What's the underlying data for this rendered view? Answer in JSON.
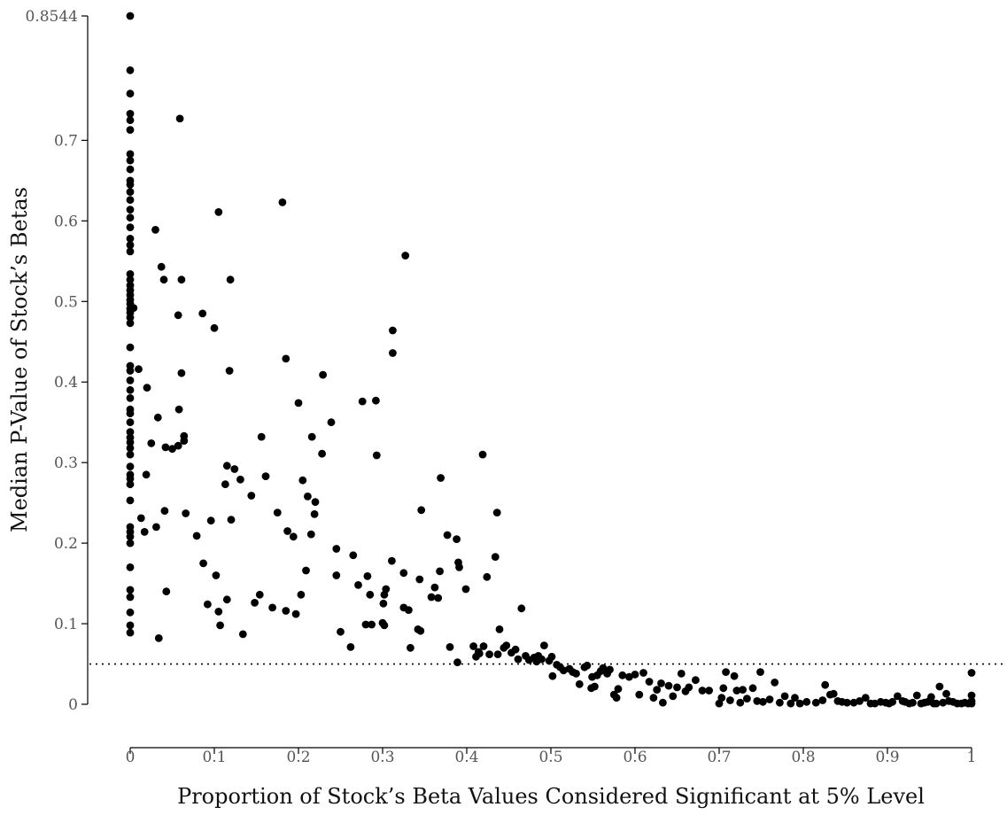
{
  "chart_data": {
    "type": "scatter",
    "title": "",
    "xlabel": "Proportion of Stock’s Beta Values Considered Significant at 5% Level",
    "ylabel": "Median P-Value of Stock’s Betas",
    "xlim": [
      0,
      1
    ],
    "ylim": [
      0,
      0.8544
    ],
    "x_ticks": [
      "0",
      "0.1",
      "0.2",
      "0.3",
      "0.4",
      "0.5",
      "0.6",
      "0.7",
      "0.8",
      "0.9",
      "1"
    ],
    "x_tick_values": [
      0,
      0.1,
      0.2,
      0.3,
      0.4,
      0.5,
      0.6,
      0.7,
      0.8,
      0.9,
      1
    ],
    "y_ticks": [
      "0",
      "0.1",
      "0.2",
      "0.3",
      "0.4",
      "0.5",
      "0.6",
      "0.7",
      "0.8544"
    ],
    "y_tick_values": [
      0,
      0.1,
      0.2,
      0.3,
      0.4,
      0.5,
      0.6,
      0.7,
      0.8544
    ],
    "reference_line": {
      "y": 0.05,
      "style": "dotted"
    },
    "grid": false,
    "legend": "none",
    "point_color": "#000000",
    "points": [
      [
        0,
        0.8544
      ],
      [
        0,
        0.787
      ],
      [
        0,
        0.758
      ],
      [
        0,
        0.733
      ],
      [
        0,
        0.725
      ],
      [
        0,
        0.713
      ],
      [
        0,
        0.683
      ],
      [
        0,
        0.675
      ],
      [
        0,
        0.664
      ],
      [
        0,
        0.65
      ],
      [
        0,
        0.645
      ],
      [
        0,
        0.636
      ],
      [
        0,
        0.626
      ],
      [
        0,
        0.614
      ],
      [
        0,
        0.604
      ],
      [
        0,
        0.592
      ],
      [
        0,
        0.578
      ],
      [
        0,
        0.57
      ],
      [
        0,
        0.562
      ],
      [
        0,
        0.534
      ],
      [
        0,
        0.527
      ],
      [
        0,
        0.52
      ],
      [
        0,
        0.514
      ],
      [
        0,
        0.508
      ],
      [
        0,
        0.502
      ],
      [
        0,
        0.497
      ],
      [
        0,
        0.491
      ],
      [
        0,
        0.486
      ],
      [
        0,
        0.48
      ],
      [
        0,
        0.473
      ],
      [
        0,
        0.443
      ],
      [
        0,
        0.42
      ],
      [
        0,
        0.414
      ],
      [
        0,
        0.402
      ],
      [
        0,
        0.39
      ],
      [
        0,
        0.38
      ],
      [
        0,
        0.366
      ],
      [
        0,
        0.361
      ],
      [
        0,
        0.35
      ],
      [
        0,
        0.338
      ],
      [
        0,
        0.331
      ],
      [
        0,
        0.325
      ],
      [
        0,
        0.318
      ],
      [
        0,
        0.31
      ],
      [
        0,
        0.295
      ],
      [
        0,
        0.285
      ],
      [
        0,
        0.28
      ],
      [
        0,
        0.273
      ],
      [
        0,
        0.253
      ],
      [
        0,
        0.22
      ],
      [
        0,
        0.214
      ],
      [
        0,
        0.208
      ],
      [
        0,
        0.2
      ],
      [
        0,
        0.17
      ],
      [
        0,
        0.142
      ],
      [
        0,
        0.133
      ],
      [
        0,
        0.114
      ],
      [
        0,
        0.098
      ],
      [
        0,
        0.089
      ],
      [
        0.004,
        0.492
      ],
      [
        0.01,
        0.416
      ],
      [
        0.013,
        0.231
      ],
      [
        0.017,
        0.214
      ],
      [
        0.019,
        0.285
      ],
      [
        0.02,
        0.393
      ],
      [
        0.025,
        0.324
      ],
      [
        0.03,
        0.589
      ],
      [
        0.031,
        0.22
      ],
      [
        0.033,
        0.356
      ],
      [
        0.034,
        0.082
      ],
      [
        0.037,
        0.543
      ],
      [
        0.04,
        0.527
      ],
      [
        0.041,
        0.24
      ],
      [
        0.042,
        0.319
      ],
      [
        0.043,
        0.14
      ],
      [
        0.05,
        0.317
      ],
      [
        0.057,
        0.321
      ],
      [
        0.057,
        0.483
      ],
      [
        0.058,
        0.366
      ],
      [
        0.059,
        0.727
      ],
      [
        0.061,
        0.411
      ],
      [
        0.061,
        0.527
      ],
      [
        0.064,
        0.333
      ],
      [
        0.064,
        0.327
      ],
      [
        0.066,
        0.237
      ],
      [
        0.079,
        0.209
      ],
      [
        0.086,
        0.485
      ],
      [
        0.087,
        0.175
      ],
      [
        0.092,
        0.124
      ],
      [
        0.096,
        0.228
      ],
      [
        0.1,
        0.467
      ],
      [
        0.102,
        0.16
      ],
      [
        0.105,
        0.611
      ],
      [
        0.105,
        0.115
      ],
      [
        0.107,
        0.098
      ],
      [
        0.113,
        0.273
      ],
      [
        0.115,
        0.296
      ],
      [
        0.115,
        0.13
      ],
      [
        0.118,
        0.414
      ],
      [
        0.119,
        0.527
      ],
      [
        0.12,
        0.229
      ],
      [
        0.124,
        0.292
      ],
      [
        0.131,
        0.279
      ],
      [
        0.134,
        0.087
      ],
      [
        0.144,
        0.259
      ],
      [
        0.148,
        0.126
      ],
      [
        0.154,
        0.136
      ],
      [
        0.156,
        0.332
      ],
      [
        0.161,
        0.283
      ],
      [
        0.169,
        0.12
      ],
      [
        0.175,
        0.238
      ],
      [
        0.181,
        0.623
      ],
      [
        0.185,
        0.429
      ],
      [
        0.185,
        0.116
      ],
      [
        0.187,
        0.215
      ],
      [
        0.194,
        0.208
      ],
      [
        0.197,
        0.112
      ],
      [
        0.2,
        0.374
      ],
      [
        0.203,
        0.136
      ],
      [
        0.205,
        0.278
      ],
      [
        0.209,
        0.166
      ],
      [
        0.211,
        0.258
      ],
      [
        0.215,
        0.211
      ],
      [
        0.216,
        0.332
      ],
      [
        0.219,
        0.236
      ],
      [
        0.22,
        0.251
      ],
      [
        0.228,
        0.311
      ],
      [
        0.229,
        0.409
      ],
      [
        0.239,
        0.35
      ],
      [
        0.245,
        0.193
      ],
      [
        0.245,
        0.16
      ],
      [
        0.25,
        0.09
      ],
      [
        0.262,
        0.071
      ],
      [
        0.265,
        0.185
      ],
      [
        0.271,
        0.148
      ],
      [
        0.276,
        0.376
      ],
      [
        0.28,
        0.099
      ],
      [
        0.282,
        0.159
      ],
      [
        0.285,
        0.136
      ],
      [
        0.287,
        0.099
      ],
      [
        0.292,
        0.377
      ],
      [
        0.293,
        0.309
      ],
      [
        0.3,
        0.101
      ],
      [
        0.301,
        0.125
      ],
      [
        0.302,
        0.098
      ],
      [
        0.302,
        0.136
      ],
      [
        0.304,
        0.143
      ],
      [
        0.311,
        0.178
      ],
      [
        0.312,
        0.436
      ],
      [
        0.312,
        0.464
      ],
      [
        0.325,
        0.163
      ],
      [
        0.325,
        0.12
      ],
      [
        0.327,
        0.557
      ],
      [
        0.331,
        0.117
      ],
      [
        0.333,
        0.07
      ],
      [
        0.342,
        0.093
      ],
      [
        0.344,
        0.155
      ],
      [
        0.345,
        0.091
      ],
      [
        0.346,
        0.241
      ],
      [
        0.358,
        0.133
      ],
      [
        0.362,
        0.145
      ],
      [
        0.366,
        0.132
      ],
      [
        0.368,
        0.165
      ],
      [
        0.369,
        0.281
      ],
      [
        0.377,
        0.21
      ],
      [
        0.38,
        0.071
      ],
      [
        0.388,
        0.205
      ],
      [
        0.389,
        0.052
      ],
      [
        0.39,
        0.176
      ],
      [
        0.391,
        0.17
      ],
      [
        0.399,
        0.143
      ],
      [
        0.408,
        0.072
      ],
      [
        0.411,
        0.059
      ],
      [
        0.414,
        0.065
      ],
      [
        0.415,
        0.063
      ],
      [
        0.419,
        0.31
      ],
      [
        0.42,
        0.072
      ],
      [
        0.424,
        0.158
      ],
      [
        0.427,
        0.062
      ],
      [
        0.434,
        0.183
      ],
      [
        0.436,
        0.238
      ],
      [
        0.437,
        0.062
      ],
      [
        0.439,
        0.093
      ],
      [
        0.444,
        0.07
      ],
      [
        0.447,
        0.073
      ],
      [
        0.453,
        0.064
      ],
      [
        0.458,
        0.068
      ],
      [
        0.461,
        0.056
      ],
      [
        0.465,
        0.119
      ],
      [
        0.47,
        0.06
      ],
      [
        0.474,
        0.055
      ],
      [
        0.48,
        0.058
      ],
      [
        0.483,
        0.053
      ],
      [
        0.485,
        0.06
      ],
      [
        0.489,
        0.056
      ],
      [
        0.492,
        0.073
      ],
      [
        0.498,
        0.054
      ],
      [
        0.501,
        0.059
      ],
      [
        0.502,
        0.035
      ],
      [
        0.507,
        0.049
      ],
      [
        0.511,
        0.046
      ],
      [
        0.515,
        0.042
      ],
      [
        0.522,
        0.044
      ],
      [
        0.526,
        0.04
      ],
      [
        0.53,
        0.038
      ],
      [
        0.534,
        0.025
      ],
      [
        0.54,
        0.046
      ],
      [
        0.543,
        0.048
      ],
      [
        0.548,
        0.02
      ],
      [
        0.549,
        0.034
      ],
      [
        0.552,
        0.022
      ],
      [
        0.555,
        0.036
      ],
      [
        0.559,
        0.041
      ],
      [
        0.562,
        0.045
      ],
      [
        0.567,
        0.038
      ],
      [
        0.57,
        0.043
      ],
      [
        0.575,
        0.012
      ],
      [
        0.578,
        0.008
      ],
      [
        0.58,
        0.019
      ],
      [
        0.585,
        0.036
      ],
      [
        0.593,
        0.034
      ],
      [
        0.6,
        0.037
      ],
      [
        0.605,
        0.012
      ],
      [
        0.61,
        0.039
      ],
      [
        0.617,
        0.028
      ],
      [
        0.622,
        0.008
      ],
      [
        0.626,
        0.018
      ],
      [
        0.631,
        0.026
      ],
      [
        0.633,
        0.002
      ],
      [
        0.64,
        0.023
      ],
      [
        0.645,
        0.01
      ],
      [
        0.65,
        0.021
      ],
      [
        0.655,
        0.038
      ],
      [
        0.66,
        0.016
      ],
      [
        0.664,
        0.021
      ],
      [
        0.672,
        0.03
      ],
      [
        0.68,
        0.017
      ],
      [
        0.688,
        0.017
      ],
      [
        0.7,
        0.001
      ],
      [
        0.703,
        0.008
      ],
      [
        0.705,
        0.02
      ],
      [
        0.708,
        0.04
      ],
      [
        0.713,
        0.005
      ],
      [
        0.718,
        0.035
      ],
      [
        0.721,
        0.017
      ],
      [
        0.725,
        0.002
      ],
      [
        0.728,
        0.018
      ],
      [
        0.733,
        0.007
      ],
      [
        0.74,
        0.02
      ],
      [
        0.745,
        0.004
      ],
      [
        0.749,
        0.04
      ],
      [
        0.752,
        0.003
      ],
      [
        0.76,
        0.006
      ],
      [
        0.766,
        0.027
      ],
      [
        0.772,
        0.002
      ],
      [
        0.778,
        0.01
      ],
      [
        0.785,
        0.001
      ],
      [
        0.79,
        0.008
      ],
      [
        0.796,
        0.001
      ],
      [
        0.804,
        0.003
      ],
      [
        0.815,
        0.002
      ],
      [
        0.823,
        0.005
      ],
      [
        0.826,
        0.024
      ],
      [
        0.832,
        0.012
      ],
      [
        0.836,
        0.013
      ],
      [
        0.841,
        0.004
      ],
      [
        0.846,
        0.003
      ],
      [
        0.852,
        0.002
      ],
      [
        0.86,
        0.002
      ],
      [
        0.867,
        0.004
      ],
      [
        0.874,
        0.008
      ],
      [
        0.88,
        0.001
      ],
      [
        0.885,
        0.001
      ],
      [
        0.892,
        0.003
      ],
      [
        0.898,
        0.002
      ],
      [
        0.902,
        0.001
      ],
      [
        0.906,
        0.003
      ],
      [
        0.912,
        0.01
      ],
      [
        0.918,
        0.004
      ],
      [
        0.921,
        0.003
      ],
      [
        0.926,
        0.001
      ],
      [
        0.93,
        0.002
      ],
      [
        0.935,
        0.011
      ],
      [
        0.94,
        0.001
      ],
      [
        0.944,
        0.002
      ],
      [
        0.948,
        0.003
      ],
      [
        0.952,
        0.009
      ],
      [
        0.955,
        0.001
      ],
      [
        0.958,
        0.001
      ],
      [
        0.962,
        0.022
      ],
      [
        0.966,
        0.002
      ],
      [
        0.97,
        0.013
      ],
      [
        0.973,
        0.004
      ],
      [
        0.978,
        0.003
      ],
      [
        0.983,
        0.001
      ],
      [
        0.988,
        0.001
      ],
      [
        0.992,
        0.002
      ],
      [
        0.996,
        0.001
      ],
      [
        1.0,
        0.039
      ],
      [
        1.0,
        0.011
      ],
      [
        1.0,
        0.004
      ],
      [
        1.0,
        0.001
      ]
    ]
  }
}
